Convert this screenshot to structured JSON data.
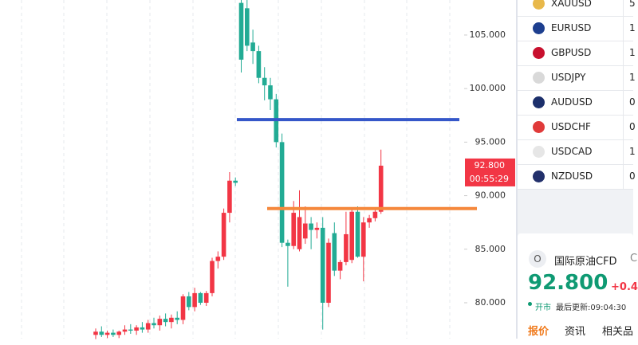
{
  "chart_data": {
    "type": "candlestick",
    "ylim": [
      76.65,
      108.27
    ],
    "yticks": [
      {
        "value": 80,
        "label": "80.000"
      },
      {
        "value": 85,
        "label": "85.000"
      },
      {
        "value": 90,
        "label": "90.000"
      },
      {
        "value": 95,
        "label": "95.000"
      },
      {
        "value": 100,
        "label": "100.000"
      },
      {
        "value": 105,
        "label": "105.000"
      }
    ],
    "up_color": "#f23645",
    "down_color": "#22ab94",
    "candles": {
      "open": [
        77.0,
        77.3,
        77.0,
        77.2,
        77.0,
        77.3,
        77.5,
        77.4,
        77.7,
        77.5,
        78.1,
        77.9,
        78.5,
        78.2,
        78.6,
        78.4,
        80.6,
        79.6,
        80.9,
        80.0,
        80.9,
        83.9,
        84.3,
        88.4,
        91.4,
        108.0,
        107.5,
        104.3,
        103.5,
        101.0,
        100.3,
        99.0,
        95.0,
        85.6,
        85.3,
        85.0,
        86.0,
        87.4,
        86.8,
        87.0,
        80.0,
        86.5,
        83.0,
        83.8,
        84.0,
        88.5,
        84.3,
        87.5,
        87.9,
        88.5
      ],
      "high": [
        77.6,
        77.8,
        77.4,
        77.5,
        77.4,
        77.9,
        78.0,
        77.9,
        78.2,
        78.4,
        78.6,
        78.8,
        79.0,
        78.9,
        79.2,
        80.8,
        81.0,
        81.4,
        81.0,
        81.1,
        84.2,
        84.8,
        88.8,
        92.2,
        91.7,
        108.3,
        108.3,
        105.5,
        104.0,
        102.0,
        101.0,
        99.5,
        95.8,
        85.9,
        89.5,
        90.5,
        89.0,
        88.0,
        87.5,
        88.0,
        86.0,
        87.5,
        84.0,
        88.5,
        88.8,
        89.0,
        88.0,
        88.2,
        88.8,
        94.3
      ],
      "low": [
        76.6,
        76.8,
        76.7,
        76.8,
        76.7,
        77.0,
        77.1,
        77.0,
        77.2,
        77.2,
        77.6,
        77.4,
        77.8,
        77.6,
        78.0,
        78.0,
        79.3,
        79.2,
        79.8,
        79.7,
        80.6,
        83.2,
        84.0,
        87.5,
        90.9,
        101.5,
        103.5,
        102.3,
        100.5,
        98.9,
        98.0,
        94.5,
        85.2,
        81.5,
        85.0,
        84.8,
        85.5,
        85.0,
        86.0,
        77.5,
        79.6,
        82.5,
        82.2,
        83.5,
        83.7,
        84.2,
        82.0,
        87.0,
        87.6,
        88.3
      ],
      "close": [
        77.3,
        77.0,
        77.2,
        77.0,
        77.3,
        77.5,
        77.4,
        77.7,
        77.5,
        78.1,
        77.9,
        78.5,
        78.2,
        78.6,
        78.4,
        80.6,
        79.6,
        80.9,
        80.0,
        80.9,
        83.9,
        84.3,
        88.4,
        91.4,
        91.2,
        102.7,
        104.0,
        103.5,
        101.0,
        100.3,
        99.0,
        95.0,
        85.6,
        85.3,
        88.4,
        88.0,
        87.4,
        86.8,
        87.0,
        80.0,
        85.6,
        83.0,
        83.8,
        86.4,
        88.5,
        84.3,
        87.5,
        87.9,
        88.5,
        92.8
      ]
    },
    "hlines": [
      {
        "value": 97.1,
        "color": "#3557c9"
      },
      {
        "value": 88.8,
        "color": "#f5883c"
      }
    ],
    "price_label": "92.800",
    "countdown": "00:55:29"
  },
  "watchlist": {
    "rows": [
      {
        "symbol": "XAUUSD",
        "value": "5"
      },
      {
        "symbol": "EURUSD",
        "value": "1"
      },
      {
        "symbol": "GBPUSD",
        "value": "1"
      },
      {
        "symbol": "USDJPY",
        "value": "1"
      },
      {
        "symbol": "AUDUSD",
        "value": "0"
      },
      {
        "symbol": "USDCHF",
        "value": "0"
      },
      {
        "symbol": "USDCAD",
        "value": "1"
      },
      {
        "symbol": "NZDUSD",
        "value": "0"
      }
    ]
  },
  "quote": {
    "icon": "O",
    "name": "国际原油CFD",
    "name_suffix": "C",
    "price": "92.800",
    "change": "+0.4",
    "status": "开市",
    "updated": "最后更新:09:04:30",
    "tabs": [
      "报价",
      "资讯",
      "相关品"
    ]
  }
}
